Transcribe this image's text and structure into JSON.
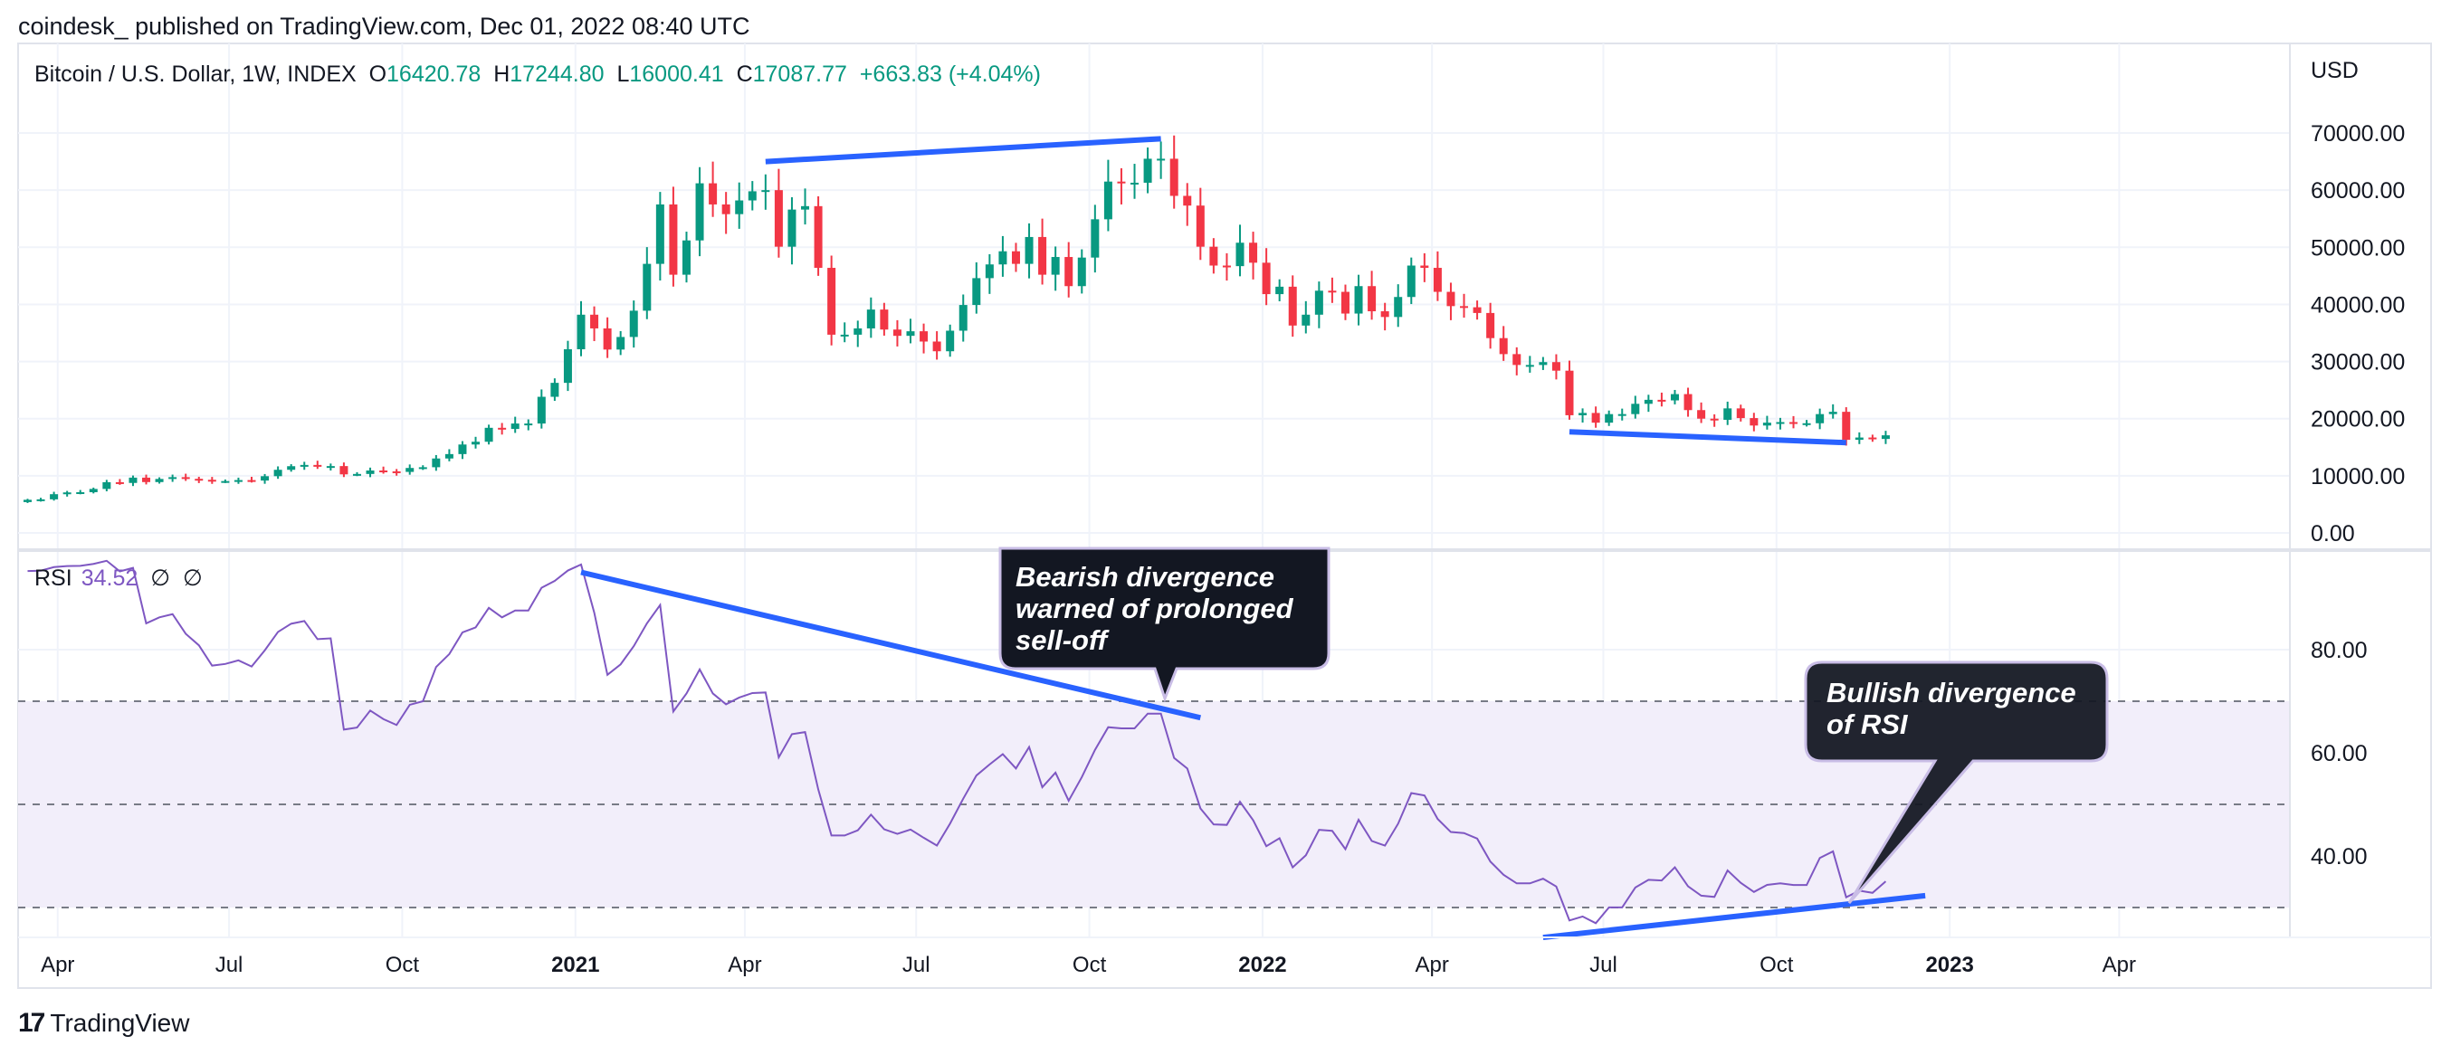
{
  "header": {
    "published": "coindesk_ published on TradingView.com, Dec 01, 2022 08:40 UTC",
    "symbol": "Bitcoin / U.S. Dollar, 1W, INDEX",
    "o_label": "O",
    "o": "16420.78",
    "h_label": "H",
    "h": "17244.80",
    "l_label": "L",
    "l": "16000.41",
    "c_label": "C",
    "c": "17087.77",
    "change": "+663.83 (+4.04%)"
  },
  "rsi_legend": {
    "label": "RSI",
    "value": "34.52",
    "na1": "∅",
    "na2": "∅"
  },
  "footer": {
    "brand": "TradingView"
  },
  "colors": {
    "up": "#089981",
    "down": "#f23645",
    "rsi": "#7e57c2",
    "trendline": "#2962ff",
    "band": "#f2eefa",
    "grid": "#f0f3fa"
  },
  "chart_data": [
    {
      "type": "candlestick",
      "title": "Bitcoin / U.S. Dollar, 1W, INDEX",
      "currency": "USD",
      "start_week": "2020-03-16",
      "first_open": 5400,
      "closes": [
        5800,
        5880,
        6780,
        7090,
        7130,
        7700,
        8880,
        8750,
        9680,
        8900,
        9450,
        9760,
        9470,
        9300,
        9000,
        9080,
        9250,
        9170,
        9930,
        11050,
        11680,
        11900,
        11650,
        11700,
        10250,
        10320,
        10930,
        10780,
        10680,
        11370,
        11500,
        13030,
        13800,
        15480,
        15960,
        18400,
        18200,
        19150,
        19150,
        23830,
        26270,
        32150,
        38200,
        35800,
        32100,
        34300,
        38900,
        47100,
        57500,
        45200,
        51200,
        61200,
        57500,
        55800,
        58200,
        59800,
        60000,
        50100,
        56600,
        57200,
        46400,
        34700,
        34700,
        35800,
        39100,
        35600,
        34500,
        35300,
        33500,
        31800,
        35400,
        39900,
        44600,
        47000,
        49300,
        47100,
        51800,
        45200,
        48300,
        43200,
        48200,
        54900,
        61500,
        61300,
        61300,
        65500,
        65500,
        59000,
        57300,
        50100,
        46800,
        46700,
        50800,
        47300,
        41800,
        43100,
        36300,
        38200,
        42400,
        42200,
        38400,
        43200,
        38800,
        37800,
        41300,
        46800,
        46400,
        42200,
        39700,
        39500,
        38500,
        34100,
        31300,
        29400,
        29400,
        29900,
        28400,
        20600,
        21000,
        19300,
        20800,
        20800,
        22600,
        23300,
        23200,
        24300,
        21500,
        20000,
        19800,
        21800,
        20100,
        18800,
        19300,
        19400,
        19200,
        19200,
        20800,
        21200,
        16300,
        16700,
        16450,
        17087.77
      ],
      "ylim": [
        0,
        75000
      ],
      "yticks": [
        "70000.00",
        "60000.00",
        "50000.00",
        "40000.00",
        "30000.00",
        "20000.00",
        "10000.00",
        "0.00"
      ],
      "ytick_values": [
        70000,
        60000,
        50000,
        40000,
        30000,
        20000,
        10000,
        0
      ],
      "trendlines": [
        {
          "from": [
            "2021-04-12",
            65000
          ],
          "to": [
            "2021-11-08",
            69000
          ]
        },
        {
          "from": [
            "2022-06-13",
            17700
          ],
          "to": [
            "2022-11-07",
            15800
          ]
        }
      ]
    },
    {
      "type": "line",
      "title": "RSI",
      "period": 14,
      "ylim": [
        20,
        99
      ],
      "yticks": [
        "80.00",
        "60.00",
        "40.00"
      ],
      "ytick_values": [
        80,
        60,
        40
      ],
      "band": [
        30,
        70
      ],
      "levels": [
        70,
        50,
        30
      ],
      "trendlines": [
        {
          "from": [
            "2021-01-04",
            95
          ],
          "to": [
            "2021-11-29",
            66.8
          ]
        },
        {
          "from": [
            "2022-05-30",
            24.2
          ],
          "to": [
            "2022-12-19",
            32.3
          ]
        }
      ],
      "annotations": [
        {
          "text": "Bearish divergence\nwarned of prolonged\nsell-off"
        },
        {
          "text": "Bullish divergence\nof RSI"
        }
      ]
    }
  ],
  "xaxis": {
    "ticks": [
      {
        "label": "Apr",
        "date": "2020-04-01",
        "bold": false
      },
      {
        "label": "Jul",
        "date": "2020-07-01",
        "bold": false
      },
      {
        "label": "Oct",
        "date": "2020-10-01",
        "bold": false
      },
      {
        "label": "2021",
        "date": "2021-01-01",
        "bold": true
      },
      {
        "label": "Apr",
        "date": "2021-04-01",
        "bold": false
      },
      {
        "label": "Jul",
        "date": "2021-07-01",
        "bold": false
      },
      {
        "label": "Oct",
        "date": "2021-10-01",
        "bold": false
      },
      {
        "label": "2022",
        "date": "2022-01-01",
        "bold": true
      },
      {
        "label": "Apr",
        "date": "2022-04-01",
        "bold": false
      },
      {
        "label": "Jul",
        "date": "2022-07-01",
        "bold": false
      },
      {
        "label": "Oct",
        "date": "2022-10-01",
        "bold": false
      },
      {
        "label": "2023",
        "date": "2023-01-01",
        "bold": true
      },
      {
        "label": "Apr",
        "date": "2023-04-01",
        "bold": false
      }
    ]
  }
}
